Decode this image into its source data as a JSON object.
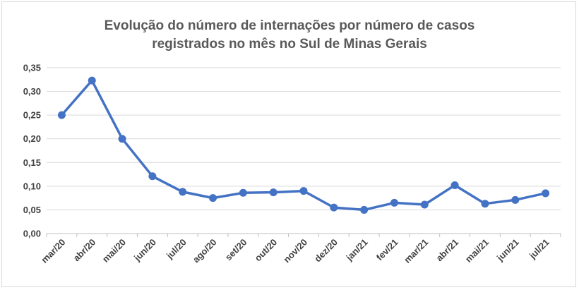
{
  "chart_data": {
    "type": "line",
    "title_lines": [
      "Evolução do número de internações por número de casos",
      "registrados no mês no Sul de Minas Gerais"
    ],
    "categories": [
      "mar/20",
      "abr/20",
      "mai/20",
      "jun/20",
      "jul/20",
      "ago/20",
      "set/20",
      "out/20",
      "nov/20",
      "dez/20",
      "jan/21",
      "fev/21",
      "mar/21",
      "abr/21",
      "mai/21",
      "jun/21",
      "jul/21"
    ],
    "series": [
      {
        "values": [
          0.25,
          0.323,
          0.2,
          0.121,
          0.088,
          0.075,
          0.086,
          0.087,
          0.09,
          0.055,
          0.05,
          0.065,
          0.061,
          0.102,
          0.063,
          0.071,
          0.085
        ],
        "color": "#4472c4"
      }
    ],
    "yticks": [
      "0,00",
      "0,05",
      "0,10",
      "0,15",
      "0,20",
      "0,25",
      "0,30",
      "0,35"
    ],
    "ylim": [
      0,
      0.35
    ],
    "grid": true,
    "legend": "none"
  }
}
